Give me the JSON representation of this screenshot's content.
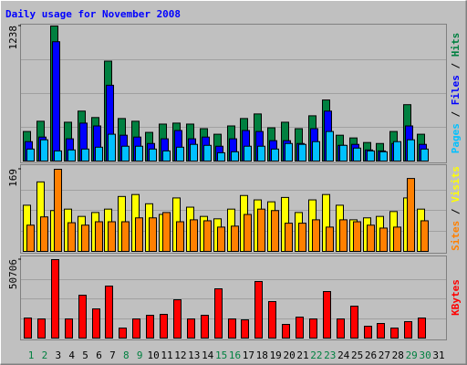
{
  "title": "Daily usage for November 2008",
  "chart_data": [
    {
      "type": "bar",
      "ylim": [
        0,
        1238
      ],
      "yticks": [
        1238
      ],
      "legend_separator": " / ",
      "series": [
        {
          "name": "Hits",
          "color": "#008040",
          "values": [
            271,
            365,
            1238,
            356,
            458,
            399,
            916,
            390,
            365,
            263,
            339,
            348,
            339,
            297,
            246,
            322,
            390,
            432,
            305,
            356,
            297,
            415,
            560,
            237,
            212,
            170,
            161,
            271,
            517,
            246,
            0
          ]
        },
        {
          "name": "Files",
          "color": "#0000ff",
          "values": [
            178,
            220,
            1094,
            204,
            348,
            322,
            695,
            237,
            220,
            161,
            204,
            280,
            204,
            220,
            136,
            204,
            280,
            271,
            187,
            187,
            161,
            297,
            458,
            144,
            153,
            102,
            93,
            161,
            322,
            153,
            0
          ]
        },
        {
          "name": "Pages",
          "color": "#00c0ff",
          "values": [
            110,
            195,
            93,
            102,
            110,
            127,
            246,
            136,
            136,
            110,
            93,
            127,
            153,
            144,
            76,
            85,
            136,
            136,
            110,
            161,
            153,
            178,
            271,
            144,
            119,
            93,
            85,
            178,
            195,
            110,
            0
          ]
        }
      ]
    },
    {
      "type": "bar",
      "ylim": [
        0,
        169
      ],
      "yticks": [
        169
      ],
      "legend_separator": " / ",
      "series": [
        {
          "name": "Visits",
          "color": "#ffff00",
          "values": [
            95,
            143,
            84,
            87,
            72,
            80,
            87,
            113,
            117,
            98,
            76,
            110,
            91,
            72,
            67,
            87,
            115,
            106,
            102,
            111,
            80,
            106,
            117,
            95,
            65,
            69,
            72,
            82,
            110,
            87,
            0
          ]
        },
        {
          "name": "Sites",
          "color": "#ff8000",
          "values": [
            54,
            71,
            169,
            59,
            54,
            61,
            61,
            61,
            69,
            69,
            80,
            61,
            65,
            63,
            50,
            52,
            76,
            87,
            84,
            58,
            58,
            65,
            50,
            65,
            61,
            54,
            48,
            50,
            150,
            63,
            0
          ]
        }
      ]
    },
    {
      "type": "bar",
      "ylim": [
        0,
        50706
      ],
      "yticks": [
        50706
      ],
      "categories": [
        "1",
        "2",
        "3",
        "4",
        "5",
        "6",
        "7",
        "8",
        "9",
        "10",
        "11",
        "12",
        "13",
        "14",
        "15",
        "16",
        "17",
        "18",
        "19",
        "20",
        "21",
        "22",
        "23",
        "24",
        "25",
        "26",
        "27",
        "28",
        "29",
        "30",
        "31"
      ],
      "category_colors": [
        "#008040",
        "#008040",
        "#000000",
        "#000000",
        "#000000",
        "#000000",
        "#000000",
        "#008040",
        "#008040",
        "#000000",
        "#000000",
        "#000000",
        "#000000",
        "#000000",
        "#008040",
        "#008040",
        "#000000",
        "#000000",
        "#000000",
        "#000000",
        "#000000",
        "#008040",
        "#008040",
        "#000000",
        "#000000",
        "#000000",
        "#000000",
        "#000000",
        "#008040",
        "#008040",
        "#000000"
      ],
      "series": [
        {
          "name": "KBytes",
          "color": "#ff0000",
          "values": [
            12971,
            12382,
            50706,
            12382,
            27711,
            18867,
            33607,
            6486,
            12382,
            14740,
            15330,
            24763,
            12382,
            14740,
            31838,
            12382,
            11792,
            36555,
            23584,
            8844,
            13561,
            12382,
            30070,
            12382,
            20636,
            7665,
            9434,
            6486,
            10613,
            12971,
            0
          ]
        }
      ]
    }
  ]
}
